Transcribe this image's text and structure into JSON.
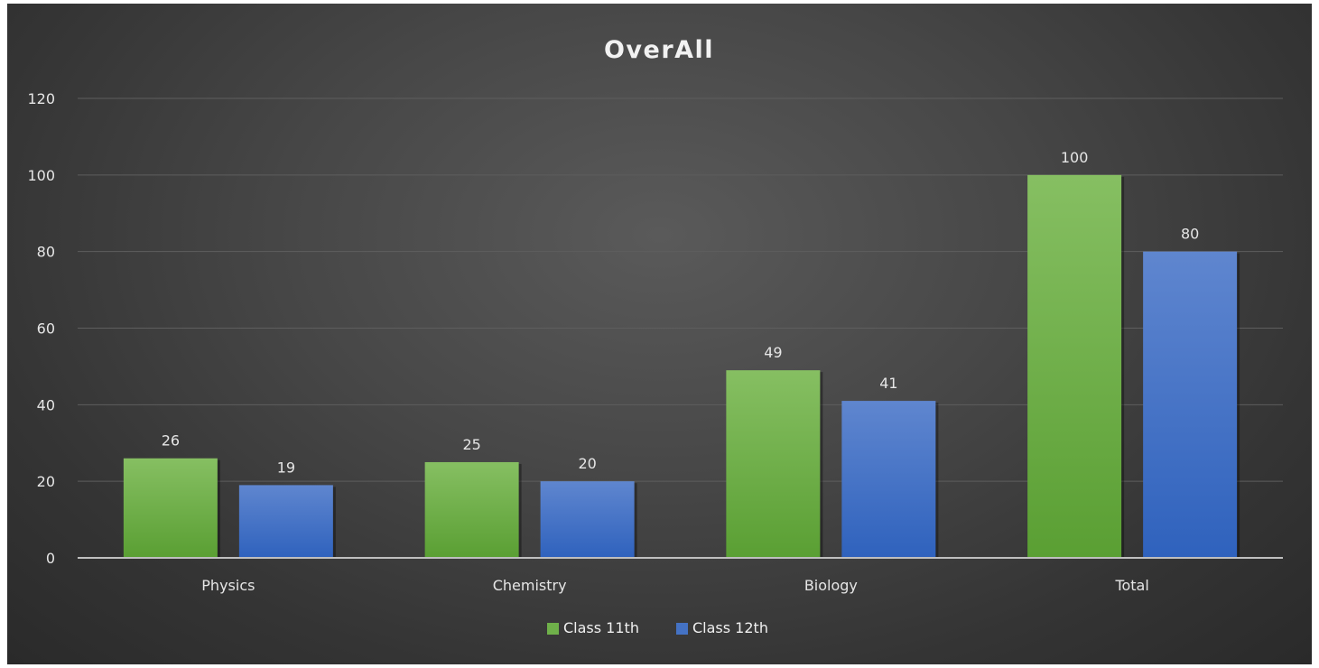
{
  "chart_data": {
    "type": "bar",
    "title": "OverAll",
    "categories": [
      "Physics",
      "Chemistry",
      "Biology",
      "Total"
    ],
    "series": [
      {
        "name": "Class 11th",
        "values": [
          26,
          25,
          49,
          100
        ],
        "color": "#6fb04a"
      },
      {
        "name": "Class 12th",
        "values": [
          19,
          20,
          41,
          80
        ],
        "color": "#4472c4"
      }
    ],
    "ylim": [
      0,
      120
    ],
    "yticks": [
      0,
      20,
      40,
      60,
      80,
      100,
      120
    ],
    "grid": true,
    "legend_position": "bottom",
    "xlabel": "",
    "ylabel": "",
    "data_labels": true
  }
}
